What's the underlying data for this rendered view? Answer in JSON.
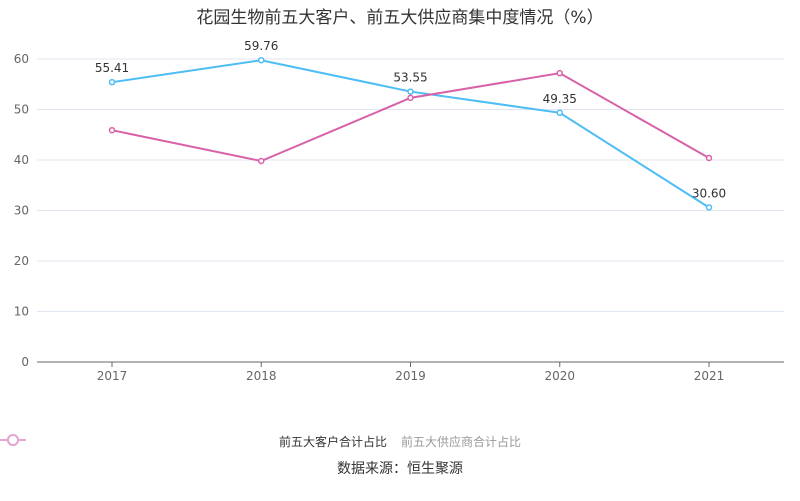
{
  "chart_data": {
    "type": "line",
    "title": "花园生物前五大客户、前五大供应商集中度情况（%）",
    "categories": [
      "2017",
      "2018",
      "2019",
      "2020",
      "2021"
    ],
    "ylim": [
      0,
      60
    ],
    "yticks": [
      0,
      10,
      20,
      30,
      40,
      50,
      60
    ],
    "grid": true,
    "legend_position": "bottom",
    "series": [
      {
        "name": "前五大客户合计占比",
        "values": [
          55.41,
          59.76,
          53.55,
          49.35,
          30.6
        ],
        "labels": [
          "55.41",
          "59.76",
          "53.55",
          "49.35",
          "30.60"
        ],
        "color": "#4cbdf5",
        "legend_active": true
      },
      {
        "name": "前五大供应商合计占比",
        "values": [
          45.9,
          39.8,
          52.3,
          57.2,
          40.4
        ],
        "color": "#d861a8",
        "legend_active": false
      }
    ]
  },
  "source": "数据来源：恒生聚源"
}
